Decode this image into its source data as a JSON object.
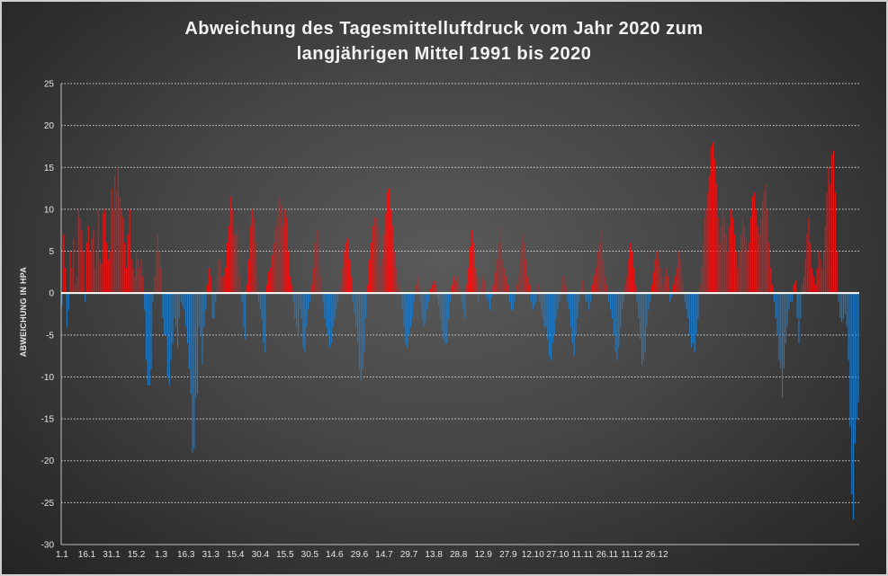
{
  "chart_data": {
    "type": "bar",
    "title_lines": [
      "Abweichung des Tagesmittelluftdruck vom Jahr 2020 zum",
      "langjährigen Mittel 1991 bis 2020"
    ],
    "ylabel": "ABWEICHUNG IN HPA",
    "xlabel": "",
    "ylim": [
      -30,
      25
    ],
    "yticks": [
      25,
      20,
      15,
      10,
      5,
      0,
      -5,
      -10,
      -15,
      -20,
      -25,
      -30
    ],
    "grid": true,
    "legend": "none",
    "xtick_labels": [
      "1.1",
      "16.1",
      "31.1",
      "15.2",
      "1.3",
      "16.3",
      "31.3",
      "15.4",
      "30.4",
      "15.5",
      "30.5",
      "14.6",
      "29.6",
      "14.7",
      "29.7",
      "13.8",
      "28.8",
      "12.9",
      "27.9",
      "12.10",
      "27.10",
      "11.11",
      "26.11",
      "11.12",
      "26.12"
    ],
    "positive_color": "#ee1111",
    "negative_color": "#1f7bc9",
    "series": [
      {
        "values": [
          -1.5,
          7.0,
          3.0,
          -4.0,
          -2.0,
          5.0,
          3.0,
          6.5,
          1.0,
          2.0,
          10.0,
          9.0,
          7.5,
          5.0,
          -1.0,
          6.0,
          8.0,
          5.0,
          6.5,
          7.5,
          3.0,
          5.0,
          10.0,
          4.0,
          3.5,
          9.5,
          10.0,
          6.0,
          4.0,
          5.0,
          12.5,
          10.0,
          14.0,
          12.0,
          15.0,
          11.5,
          10.0,
          9.0,
          6.0,
          3.0,
          7.0,
          10.0,
          4.0,
          3.0,
          2.0,
          5.0,
          4.0,
          3.0,
          4.0,
          2.0,
          -2.0,
          -8.0,
          -11.0,
          -11.0,
          -9.0,
          -1.0,
          2.0,
          5.0,
          7.0,
          5.0,
          3.0,
          -3.0,
          -5.0,
          -5.0,
          -10.0,
          -11.0,
          -8.0,
          -6.0,
          -3.0,
          -4.0,
          -6.5,
          -3.0,
          -1.0,
          -1.5,
          -2.0,
          -4.0,
          -6.0,
          -9.0,
          -12.0,
          -19.0,
          -18.5,
          -12.5,
          -12.0,
          -4.0,
          -5.0,
          -8.5,
          -4.0,
          -2.0,
          1.0,
          3.0,
          2.0,
          -3.0,
          -3.0,
          -1.0,
          2.0,
          4.0,
          4.0,
          2.0,
          2.0,
          3.0,
          6.0,
          8.0,
          11.5,
          10.0,
          7.0,
          7.0,
          8.0,
          3.0,
          2.0,
          -1.0,
          -4.0,
          -5.5,
          1.0,
          4.0,
          8.0,
          10.0,
          9.0,
          6.0,
          2.0,
          -1.0,
          -2.0,
          -3.0,
          -6.0,
          -7.0,
          1.0,
          2.5,
          3.0,
          4.5,
          6.0,
          8.0,
          9.0,
          11.0,
          11.5,
          10.5,
          8.0,
          10.0,
          9.0,
          5.0,
          2.0,
          1.0,
          -1.0,
          -3.0,
          -4.0,
          -5.0,
          -2.0,
          -3.0,
          -6.5,
          -7.0,
          -4.0,
          -2.0,
          -1.0,
          1.0,
          3.0,
          6.0,
          7.5,
          7.5,
          3.0,
          2.0,
          -1.0,
          -3.0,
          -4.0,
          -5.0,
          -6.5,
          -6.0,
          -4.0,
          -3.0,
          -2.0,
          -1.0,
          0.5,
          1.0,
          3.0,
          5.0,
          6.0,
          6.5,
          4.0,
          2.0,
          -1.0,
          -2.5,
          -4.0,
          -6.0,
          -9.0,
          -10.5,
          -9.0,
          -7.0,
          -3.0,
          1.0,
          4.0,
          6.0,
          8.0,
          9.0,
          9.0,
          8.0,
          7.0,
          3.0,
          4.0,
          7.0,
          9.5,
          12.0,
          12.5,
          10.0,
          8.0,
          5.0,
          3.0,
          1.0,
          1.5,
          0.5,
          -2.0,
          -4.0,
          -6.0,
          -6.5,
          -5.0,
          -4.0,
          -3.0,
          -1.0,
          1.0,
          2.0,
          1.0,
          -1.0,
          -3.0,
          -4.0,
          -3.5,
          -2.0,
          -1.0,
          0.5,
          1.0,
          1.5,
          1.0,
          -0.5,
          -1.5,
          -3.0,
          -4.5,
          -5.5,
          -6.0,
          -6.0,
          -3.0,
          -1.0,
          1.0,
          2.0,
          1.5,
          2.0,
          1.0,
          0.5,
          -1.0,
          -2.0,
          -3.0,
          1.0,
          3.0,
          5.5,
          7.5,
          6.0,
          3.0,
          2.0,
          -1.0,
          0.5,
          1.0,
          2.0,
          1.5,
          -0.5,
          -1.0,
          -2.0,
          -0.5,
          1.0,
          2.5,
          4.0,
          6.0,
          8.0,
          6.0,
          4.0,
          3.0,
          2.0,
          1.0,
          -1.0,
          -2.0,
          -2.0,
          -1.0,
          1.0,
          2.0,
          4.0,
          5.5,
          7.0,
          6.0,
          4.0,
          2.0,
          1.0,
          -1.0,
          -2.0,
          -1.5,
          -1.0,
          1.0,
          -1.0,
          -2.0,
          -3.0,
          -4.0,
          -4.0,
          -5.5,
          -7.5,
          -8.0,
          -6.0,
          -5.0,
          -3.0,
          -2.0,
          -1.0,
          1.0,
          2.0,
          2.0,
          1.0,
          -1.0,
          -2.0,
          -4.0,
          -6.0,
          -7.5,
          -5.0,
          -3.0,
          -1.0,
          1.0,
          2.0,
          1.5,
          -1.0,
          -1.0,
          -2.0,
          -1.0,
          1.0,
          2.0,
          3.0,
          5.0,
          6.0,
          7.5,
          6.0,
          4.0,
          2.0,
          1.0,
          -1.0,
          -2.0,
          -3.0,
          -5.0,
          -7.0,
          -8.0,
          -6.5,
          -4.0,
          -2.0,
          -1.0,
          1.0,
          2.0,
          4.0,
          6.0,
          5.0,
          3.0,
          1.0,
          -1.0,
          -3.0,
          -5.5,
          -8.5,
          -8.0,
          -7.0,
          -4.0,
          -2.0,
          -1.0,
          1.0,
          2.5,
          4.0,
          5.0,
          4.0,
          3.0,
          2.0,
          1.0,
          2.0,
          3.0,
          2.0,
          -1.0,
          -0.5,
          1.0,
          2.0,
          3.0,
          5.0,
          4.0,
          2.0,
          1.0,
          -1.0,
          -2.0,
          -3.0,
          -5.0,
          -6.5,
          -6.0,
          -7.0,
          -5.0,
          -3.0,
          1.0,
          3.0,
          6.0,
          9.0,
          10.0,
          12.0,
          14.0,
          17.5,
          18.0,
          16.0,
          13.0,
          9.0,
          6.0,
          8.0,
          10.0,
          9.0,
          7.0,
          5.0,
          8.0,
          10.0,
          9.0,
          7.0,
          5.0,
          3.0,
          5.0,
          7.0,
          9.0,
          8.0,
          6.5,
          5.0,
          6.0,
          9.0,
          11.5,
          12.0,
          10.0,
          8.0,
          7.0,
          9.0,
          11.0,
          12.0,
          13.0,
          10.0,
          6.0,
          3.0,
          1.0,
          -1.0,
          -3.0,
          -5.0,
          -8.0,
          -9.0,
          -12.5,
          -9.0,
          -6.0,
          -4.0,
          -2.0,
          -1.0,
          -1.0,
          1.0,
          1.5,
          -3.0,
          -6.0,
          -3.0,
          1.0,
          2.0,
          4.0,
          7.0,
          9.0,
          6.0,
          3.0,
          2.0,
          1.0,
          3.0,
          5.0,
          4.0,
          3.0,
          5.0,
          8.0,
          12.0,
          15.0,
          13.0,
          16.5,
          17.0,
          12.0,
          5.0,
          -1.0,
          -3.0,
          -3.5,
          -3.0,
          -2.5,
          -4.0,
          -8.0,
          -16.0,
          -24.0,
          -27.0,
          -18.0,
          -15.0,
          -13.0
        ]
      }
    ]
  }
}
